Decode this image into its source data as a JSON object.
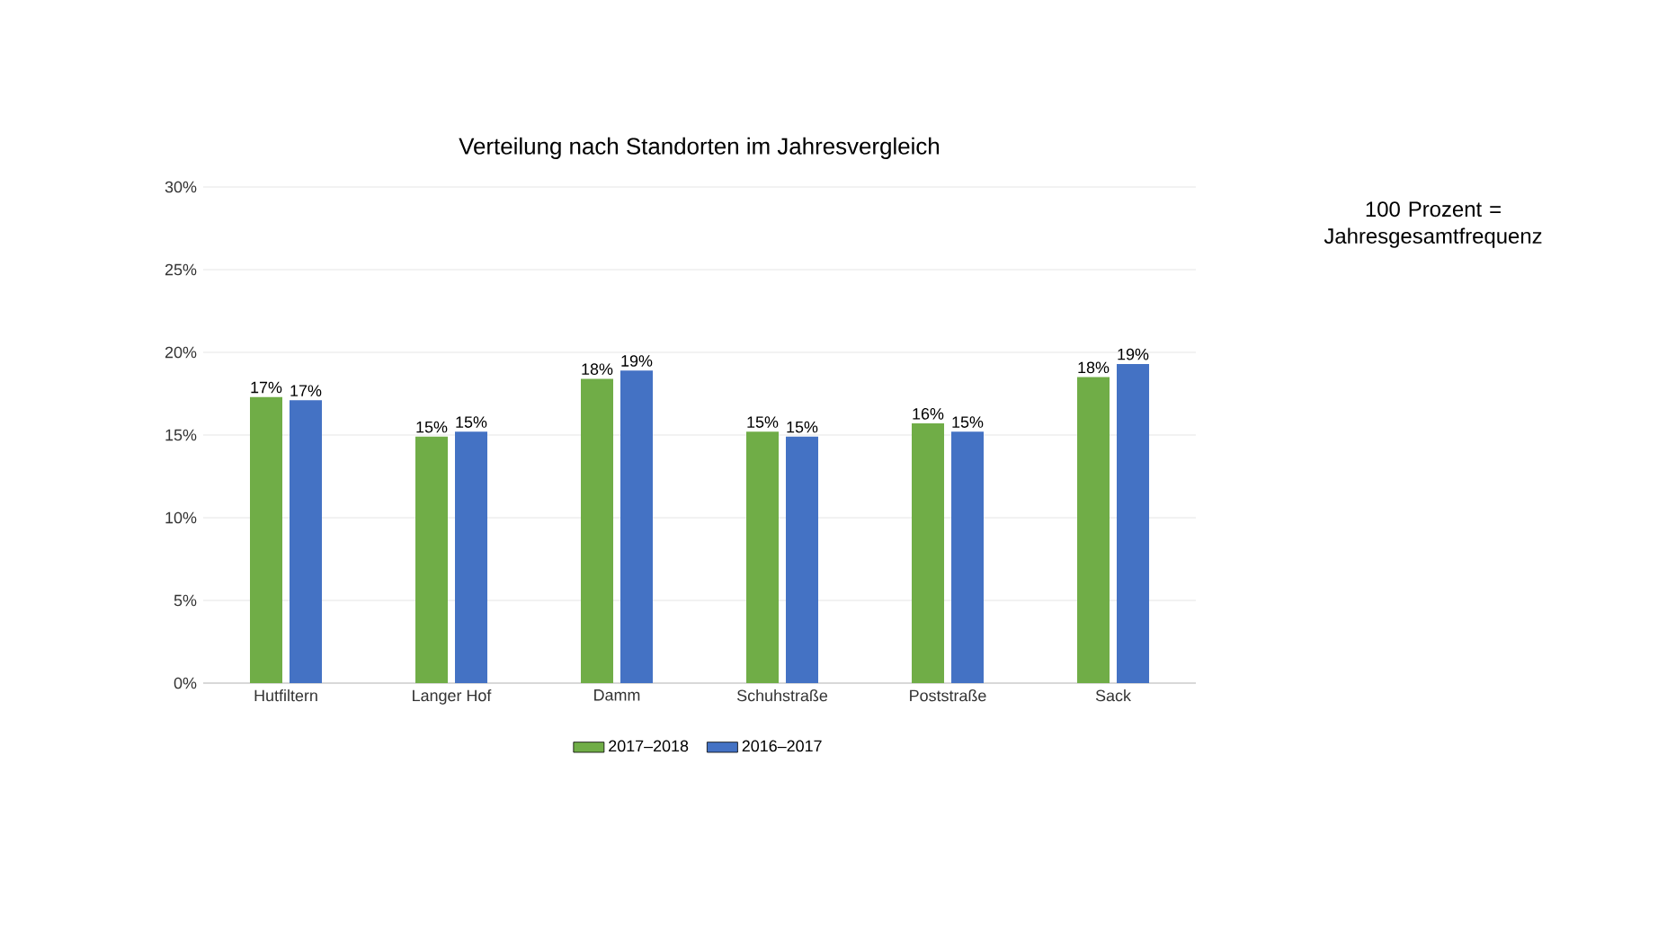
{
  "chart_data": {
    "type": "bar",
    "title": "Verteilung nach Standorten im Jahresvergleich",
    "categories": [
      "Hutfiltern",
      "Langer Hof",
      "Damm",
      "Schuhstraße",
      "Poststraße",
      "Sack"
    ],
    "series": [
      {
        "name": "2017–2018",
        "color": "#70ad47",
        "values": [
          17.3,
          14.9,
          18.4,
          15.2,
          15.7,
          18.5
        ],
        "value_labels": [
          "17%",
          "15%",
          "18%",
          "15%",
          "16%",
          "18%"
        ]
      },
      {
        "name": "2016–2017",
        "color": "#4472c4",
        "values": [
          17.1,
          15.2,
          18.9,
          14.9,
          15.2,
          19.3
        ],
        "value_labels": [
          "17%",
          "15%",
          "19%",
          "15%",
          "15%",
          "19%"
        ]
      }
    ],
    "ylim": [
      0,
      30
    ],
    "yticks": [
      {
        "value": 0,
        "label": "0%"
      },
      {
        "value": 5,
        "label": "5%"
      },
      {
        "value": 10,
        "label": "10%"
      },
      {
        "value": 15,
        "label": "15%"
      },
      {
        "value": 20,
        "label": "20%"
      },
      {
        "value": 25,
        "label": "25%"
      },
      {
        "value": 30,
        "label": "30%"
      }
    ],
    "grid": "y",
    "legend": "bottom",
    "annotations": [
      "100 Prozent = Jahresgesamtfrequenz"
    ]
  }
}
